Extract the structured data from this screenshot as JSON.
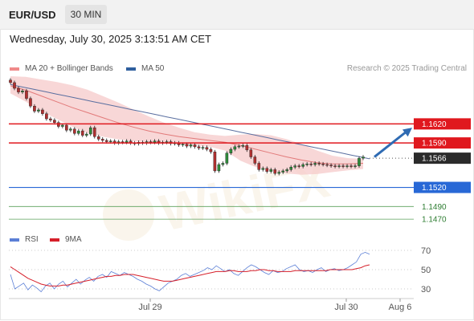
{
  "header": {
    "symbol": "EUR/USD",
    "timeframe": "30 MIN",
    "datetime": "Wednesday, July 30, 2025 3:13:51 AM CET",
    "research": "Research © 2025 Trading Central"
  },
  "legends": {
    "main": [
      {
        "label": "MA 20 + Bollinger Bands",
        "color": "#f08a8a"
      },
      {
        "label": "MA 50",
        "color": "#2f5f9e"
      }
    ],
    "rsi": [
      {
        "label": "RSI",
        "color": "#5b7fd6"
      },
      {
        "label": "9MA",
        "color": "#d61f2a"
      }
    ]
  },
  "colors": {
    "up_candle": "#2e8b3a",
    "down_candle": "#b03030",
    "resistance": "#e0181e",
    "support_strong": "#2868d6",
    "support_weak": "#5aa05a",
    "arrow": "#2f6bb3",
    "band": "#f6c9c9"
  },
  "chart_data": [
    {
      "type": "candlestick",
      "title": "",
      "xlabel": "",
      "ylabel": "",
      "ylim": [
        1.1455,
        1.1695
      ],
      "x_ticks": [
        "Jul 29",
        "Jul 30",
        "Aug 6"
      ],
      "price_levels": [
        {
          "value": 1.162,
          "label": "1.1620",
          "kind": "resistance"
        },
        {
          "value": 1.159,
          "label": "1.1590",
          "kind": "resistance"
        },
        {
          "value": 1.1566,
          "label": "1.1566",
          "kind": "current"
        },
        {
          "value": 1.152,
          "label": "1.1520",
          "kind": "support_strong"
        },
        {
          "value": 1.149,
          "label": "1.1490",
          "kind": "support_weak"
        },
        {
          "value": 1.147,
          "label": "1.1470",
          "kind": "support_weak"
        }
      ],
      "close": [
        1.1685,
        1.1676,
        1.167,
        1.1672,
        1.166,
        1.1648,
        1.164,
        1.1642,
        1.1636,
        1.1628,
        1.1626,
        1.1622,
        1.1616,
        1.1618,
        1.161,
        1.1612,
        1.1605,
        1.1609,
        1.1602,
        1.1604,
        1.1614,
        1.16,
        1.1596,
        1.1594,
        1.1592,
        1.1593,
        1.159,
        1.1592,
        1.1591,
        1.1593,
        1.159,
        1.1589,
        1.1591,
        1.159,
        1.1592,
        1.1591,
        1.1593,
        1.159,
        1.1591,
        1.1592,
        1.1589,
        1.159,
        1.1587,
        1.1588,
        1.1585,
        1.1587,
        1.1584,
        1.1582,
        1.1583,
        1.158,
        1.1576,
        1.1546,
        1.1556,
        1.1558,
        1.1574,
        1.158,
        1.1584,
        1.1585,
        1.1586,
        1.1579,
        1.1568,
        1.1558,
        1.1548,
        1.155,
        1.1545,
        1.1548,
        1.1542,
        1.1544,
        1.1546,
        1.1548,
        1.1552,
        1.1554,
        1.1553,
        1.1556,
        1.1557,
        1.1556,
        1.1558,
        1.1557,
        1.1556,
        1.1555,
        1.1554,
        1.1553,
        1.1554,
        1.1553,
        1.1554,
        1.1553,
        1.1554,
        1.1566,
        1.1568
      ],
      "ma50": [
        1.1682,
        1.1679,
        1.1676,
        1.1673,
        1.167,
        1.1667,
        1.1664,
        1.1661,
        1.1658,
        1.1655,
        1.1652,
        1.1649,
        1.1646,
        1.1643,
        1.164,
        1.1637,
        1.1634,
        1.1631,
        1.1628,
        1.1625,
        1.1622,
        1.1619,
        1.1616,
        1.1613,
        1.161,
        1.1607,
        1.1604,
        1.1601,
        1.1598,
        1.1595,
        1.1592,
        1.1589,
        1.1586,
        1.1583,
        1.158,
        1.1577,
        1.1574,
        1.1571,
        1.1568,
        1.1565
      ],
      "ma20_with_bands": [
        {
          "ma": 1.168,
          "upper": 1.1695,
          "lower": 1.1668
        },
        {
          "ma": 1.1673,
          "upper": 1.1694,
          "lower": 1.1655
        },
        {
          "ma": 1.1664,
          "upper": 1.169,
          "lower": 1.164
        },
        {
          "ma": 1.1655,
          "upper": 1.1686,
          "lower": 1.1628
        },
        {
          "ma": 1.1646,
          "upper": 1.1681,
          "lower": 1.1616
        },
        {
          "ma": 1.1638,
          "upper": 1.1674,
          "lower": 1.1606
        },
        {
          "ma": 1.163,
          "upper": 1.1664,
          "lower": 1.16
        },
        {
          "ma": 1.1622,
          "upper": 1.1654,
          "lower": 1.1596
        },
        {
          "ma": 1.1615,
          "upper": 1.1643,
          "lower": 1.1593
        },
        {
          "ma": 1.1609,
          "upper": 1.1632,
          "lower": 1.1591
        },
        {
          "ma": 1.1604,
          "upper": 1.1622,
          "lower": 1.159
        },
        {
          "ma": 1.16,
          "upper": 1.1614,
          "lower": 1.1588
        },
        {
          "ma": 1.1597,
          "upper": 1.1607,
          "lower": 1.1586
        },
        {
          "ma": 1.1594,
          "upper": 1.1603,
          "lower": 1.1584
        },
        {
          "ma": 1.1591,
          "upper": 1.1601,
          "lower": 1.1578
        },
        {
          "ma": 1.1586,
          "upper": 1.1603,
          "lower": 1.1562
        },
        {
          "ma": 1.158,
          "upper": 1.1604,
          "lower": 1.1552
        },
        {
          "ma": 1.1574,
          "upper": 1.1602,
          "lower": 1.1546
        },
        {
          "ma": 1.1568,
          "upper": 1.1596,
          "lower": 1.1542
        },
        {
          "ma": 1.1563,
          "upper": 1.1588,
          "lower": 1.154
        },
        {
          "ma": 1.1559,
          "upper": 1.1578,
          "lower": 1.1541
        },
        {
          "ma": 1.1557,
          "upper": 1.157,
          "lower": 1.1544
        },
        {
          "ma": 1.1557,
          "upper": 1.1566,
          "lower": 1.1547
        },
        {
          "ma": 1.1558,
          "upper": 1.1565,
          "lower": 1.1549
        }
      ],
      "forecast": {
        "from": 1.1568,
        "to": 1.1614
      }
    },
    {
      "type": "line",
      "title": "",
      "ylim": [
        20,
        80
      ],
      "y_ticks": [
        70,
        50,
        30
      ],
      "x_ticks": [
        "Jul 29",
        "Jul 30",
        "Aug 6"
      ],
      "series": [
        {
          "name": "RSI",
          "values": [
            45,
            30,
            33,
            36,
            29,
            34,
            31,
            27,
            33,
            36,
            30,
            35,
            38,
            32,
            36,
            40,
            35,
            39,
            42,
            38,
            43,
            45,
            42,
            48,
            46,
            44,
            47,
            45,
            43,
            40,
            38,
            35,
            33,
            30,
            28,
            32,
            36,
            38,
            40,
            44,
            46,
            43,
            45,
            47,
            49,
            52,
            50,
            54,
            51,
            48,
            50,
            46,
            44,
            48,
            52,
            55,
            53,
            50,
            47,
            45,
            49,
            47,
            48,
            51,
            53,
            55,
            50,
            48,
            49,
            47,
            50,
            52,
            48,
            50,
            51,
            49,
            50,
            52,
            55,
            58,
            66,
            68,
            66
          ]
        },
        {
          "name": "9MA",
          "values": [
            53,
            50,
            47,
            44,
            41,
            39,
            37,
            35,
            34,
            33,
            33,
            33,
            34,
            34,
            35,
            36,
            37,
            38,
            39,
            40,
            41,
            42,
            43,
            43,
            44,
            44,
            45,
            45,
            45,
            44,
            43,
            42,
            41,
            40,
            39,
            38,
            38,
            38,
            39,
            40,
            41,
            42,
            43,
            44,
            45,
            46,
            47,
            48,
            48,
            48,
            49,
            49,
            48,
            48,
            48,
            49,
            49,
            50,
            50,
            49,
            49,
            48,
            48,
            48,
            48,
            49,
            49,
            49,
            49,
            49,
            49,
            49,
            49,
            50,
            50,
            50,
            50,
            50,
            50,
            51,
            52,
            54,
            55
          ]
        }
      ]
    }
  ]
}
